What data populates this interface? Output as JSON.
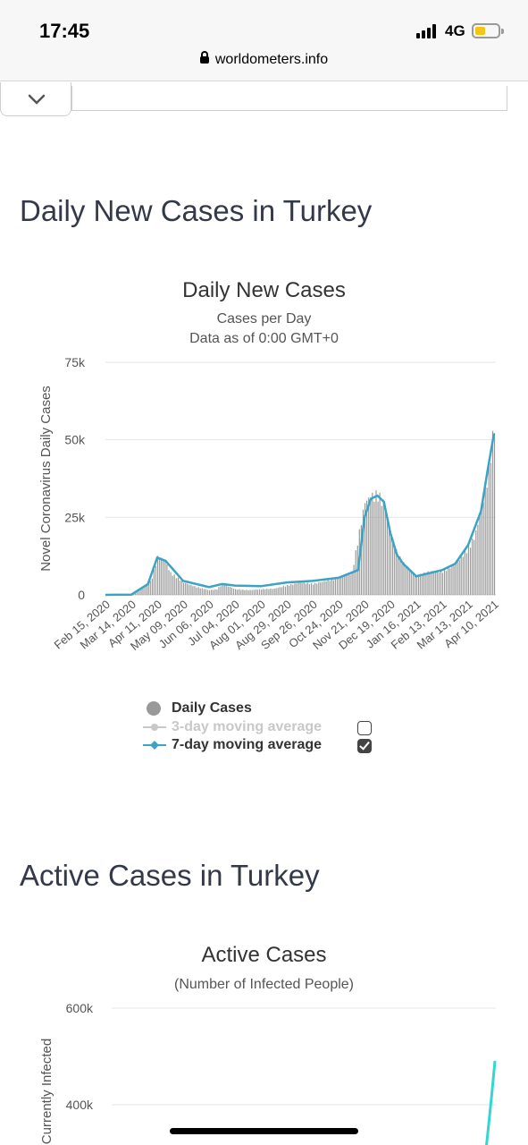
{
  "status_bar": {
    "time": "17:45",
    "network": "4G"
  },
  "browser": {
    "url": "worldometers.info"
  },
  "sections": {
    "daily": {
      "heading": "Daily New Cases in Turkey"
    },
    "active": {
      "heading": "Active Cases in Turkey"
    }
  },
  "daily_chart": {
    "title": "Daily New Cases",
    "subtitle1": "Cases per Day",
    "subtitle2": "Data as of 0:00 GMT+0",
    "ylabel": "Novel Coronavirus Daily Cases",
    "legend": {
      "daily": "Daily Cases",
      "ma3": "3-day moving average",
      "ma7": "7-day moving average"
    }
  },
  "active_chart": {
    "title": "Active Cases",
    "subtitle": "(Number of Infected People)",
    "ylabel": "Currently Infected"
  },
  "chart_data": [
    {
      "type": "bar",
      "title": "Daily New Cases",
      "subtitle": "Cases per Day",
      "ylabel": "Novel Coronavirus Daily Cases",
      "ylim": [
        0,
        75000
      ],
      "yticks": [
        0,
        25000,
        50000,
        75000
      ],
      "ytick_labels": [
        "0",
        "25k",
        "50k",
        "75k"
      ],
      "x_tick_labels": [
        "Feb 15, 2020",
        "Mar 14, 2020",
        "Apr 11, 2020",
        "May 09, 2020",
        "Jun 06, 2020",
        "Jul 04, 2020",
        "Aug 01, 2020",
        "Aug 29, 2020",
        "Sep 26, 2020",
        "Oct 24, 2020",
        "Nov 21, 2020",
        "Dec 19, 2020",
        "Jan 16, 2021",
        "Feb 13, 2021",
        "Mar 13, 2021",
        "Apr 10, 2021"
      ],
      "grid": true,
      "legend_position": "bottom",
      "series": [
        {
          "name": "Daily Cases",
          "color": "#999999",
          "x": [
            "Feb 15, 2020",
            "Mar 01, 2020",
            "Mar 14, 2020",
            "Mar 25, 2020",
            "Apr 04, 2020",
            "Apr 11, 2020",
            "Apr 18, 2020",
            "Apr 25, 2020",
            "May 09, 2020",
            "May 23, 2020",
            "Jun 06, 2020",
            "Jun 14, 2020",
            "Jun 20, 2020",
            "Jul 04, 2020",
            "Jul 18, 2020",
            "Aug 01, 2020",
            "Aug 15, 2020",
            "Aug 29, 2020",
            "Sep 12, 2020",
            "Sep 26, 2020",
            "Oct 10, 2020",
            "Oct 24, 2020",
            "Nov 07, 2020",
            "Nov 21, 2020",
            "Nov 28, 2020",
            "Dec 05, 2020",
            "Dec 12, 2020",
            "Dec 19, 2020",
            "Dec 26, 2020",
            "Jan 02, 2021",
            "Jan 16, 2021",
            "Jan 30, 2021",
            "Feb 13, 2021",
            "Feb 27, 2021",
            "Mar 13, 2021",
            "Mar 20, 2021",
            "Mar 27, 2021",
            "Apr 03, 2021",
            "Apr 08, 2021",
            "Apr 10, 2021"
          ],
          "values": [
            0,
            0,
            100,
            2500,
            4500,
            12000,
            11500,
            7000,
            4000,
            2500,
            1500,
            1800,
            3500,
            1800,
            1500,
            1800,
            2000,
            3000,
            4000,
            3500,
            4500,
            5500,
            7000,
            30000,
            31500,
            32000,
            29000,
            20000,
            13000,
            10000,
            6000,
            7500,
            7500,
            10000,
            15000,
            19000,
            28000,
            38000,
            50000,
            55000
          ]
        },
        {
          "name": "7-day moving average",
          "color": "#3ba4c4",
          "x": [
            "Feb 15, 2020",
            "Mar 14, 2020",
            "Apr 01, 2020",
            "Apr 11, 2020",
            "Apr 20, 2020",
            "May 09, 2020",
            "Jun 06, 2020",
            "Jun 20, 2020",
            "Jul 04, 2020",
            "Aug 01, 2020",
            "Aug 29, 2020",
            "Sep 26, 2020",
            "Oct 24, 2020",
            "Nov 14, 2020",
            "Nov 21, 2020",
            "Nov 28, 2020",
            "Dec 05, 2020",
            "Dec 12, 2020",
            "Dec 19, 2020",
            "Dec 26, 2020",
            "Jan 02, 2021",
            "Jan 16, 2021",
            "Feb 13, 2021",
            "Feb 27, 2021",
            "Mar 13, 2021",
            "Mar 27, 2021",
            "Apr 03, 2021",
            "Apr 10, 2021"
          ],
          "values": [
            0,
            100,
            3500,
            12000,
            11000,
            4500,
            2500,
            3500,
            3000,
            2800,
            4000,
            4500,
            5500,
            8000,
            25000,
            31000,
            32000,
            30000,
            20000,
            13000,
            10000,
            6000,
            8000,
            10000,
            16000,
            27000,
            40000,
            52000
          ]
        }
      ]
    },
    {
      "type": "line",
      "title": "Active Cases",
      "subtitle": "(Number of Infected People)",
      "ylabel": "Currently Infected",
      "ytick_labels": [
        "400k",
        "600k"
      ],
      "grid": true
    }
  ]
}
